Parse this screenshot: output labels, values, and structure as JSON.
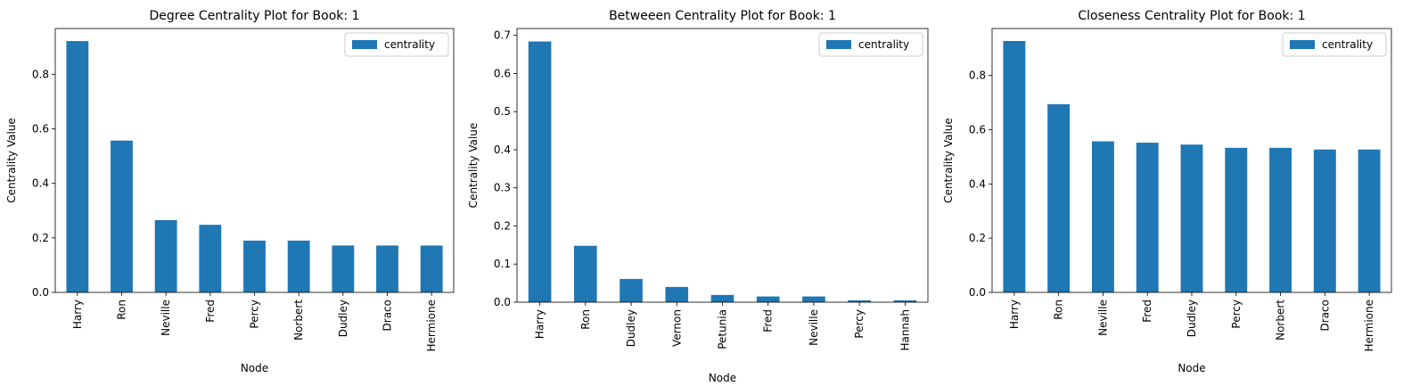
{
  "chart_data": [
    {
      "type": "bar",
      "title": "Degree Centrality Plot for Book: 1",
      "xlabel": "Node",
      "ylabel": "Centrality Value",
      "categories": [
        "Harry",
        "Ron",
        "Neville",
        "Fred",
        "Percy",
        "Norbert",
        "Dudley",
        "Draco",
        "Hermione"
      ],
      "series": [
        {
          "name": "centrality",
          "values": [
            0.922,
            0.557,
            0.265,
            0.248,
            0.19,
            0.19,
            0.172,
            0.172,
            0.172
          ]
        }
      ],
      "ylim": [
        0,
        0.968
      ],
      "yticks": [
        0.0,
        0.2,
        0.4,
        0.6,
        0.8
      ],
      "ytick_labels": [
        "0.0",
        "0.2",
        "0.4",
        "0.6",
        "0.8"
      ],
      "legend": "top-right",
      "grid": false,
      "color": "#1f77b4"
    },
    {
      "type": "bar",
      "title": "Betweeen Centrality Plot for Book: 1",
      "xlabel": "Node",
      "ylabel": "Centrality Value",
      "categories": [
        "Harry",
        "Ron",
        "Dudley",
        "Vernon",
        "Petunia",
        "Fred",
        "Neville",
        "Percy",
        "Hannah"
      ],
      "series": [
        {
          "name": "centrality",
          "values": [
            0.684,
            0.148,
            0.061,
            0.04,
            0.019,
            0.015,
            0.015,
            0.005,
            0.005
          ]
        }
      ],
      "ylim": [
        0,
        0.718
      ],
      "yticks": [
        0.0,
        0.1,
        0.2,
        0.3,
        0.4,
        0.5,
        0.6,
        0.7
      ],
      "ytick_labels": [
        "0.0",
        "0.1",
        "0.2",
        "0.3",
        "0.4",
        "0.5",
        "0.6",
        "0.7"
      ],
      "legend": "top-right",
      "grid": false,
      "color": "#1f77b4"
    },
    {
      "type": "bar",
      "title": "Closeness Centrality Plot for Book: 1",
      "xlabel": "Node",
      "ylabel": "Centrality Value",
      "categories": [
        "Harry",
        "Ron",
        "Neville",
        "Fred",
        "Dudley",
        "Percy",
        "Norbert",
        "Draco",
        "Hermione"
      ],
      "series": [
        {
          "name": "centrality",
          "values": [
            0.927,
            0.694,
            0.557,
            0.552,
            0.545,
            0.533,
            0.533,
            0.527,
            0.527
          ]
        }
      ],
      "ylim": [
        0,
        0.973
      ],
      "yticks": [
        0.0,
        0.2,
        0.4,
        0.6,
        0.8
      ],
      "ytick_labels": [
        "0.0",
        "0.2",
        "0.4",
        "0.6",
        "0.8"
      ],
      "legend": "top-right",
      "grid": false,
      "color": "#1f77b4"
    }
  ]
}
